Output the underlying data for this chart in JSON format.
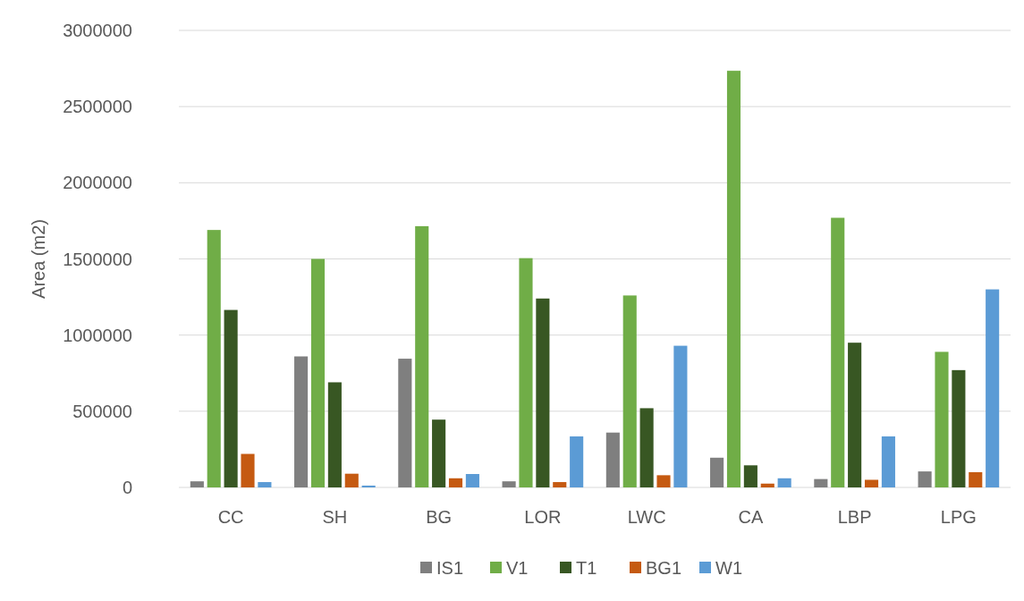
{
  "chart_data": {
    "type": "bar",
    "ylabel": "Area (m2)",
    "categories": [
      "CC",
      "SH",
      "BG",
      "LOR",
      "LWC",
      "CA",
      "LBP",
      "LPG"
    ],
    "series": [
      {
        "name": "IS1",
        "color": "#7f7f7f",
        "values": [
          40000,
          860000,
          845000,
          40000,
          360000,
          195000,
          55000,
          105000
        ]
      },
      {
        "name": "V1",
        "color": "#70ad47",
        "values": [
          1690000,
          1500000,
          1715000,
          1505000,
          1260000,
          2735000,
          1770000,
          890000
        ]
      },
      {
        "name": "T1",
        "color": "#385723",
        "values": [
          1165000,
          690000,
          445000,
          1240000,
          520000,
          145000,
          950000,
          770000
        ]
      },
      {
        "name": "BG1",
        "color": "#c55a11",
        "values": [
          220000,
          90000,
          60000,
          35000,
          80000,
          25000,
          50000,
          100000
        ]
      },
      {
        "name": "W1",
        "color": "#5b9bd5",
        "values": [
          35000,
          12000,
          88000,
          335000,
          930000,
          60000,
          335000,
          1300000
        ]
      }
    ],
    "ylim": [
      0,
      3000000
    ],
    "yticks": [
      0,
      500000,
      1000000,
      1500000,
      2000000,
      2500000,
      3000000
    ],
    "grid": "y",
    "legend": "bottom"
  }
}
